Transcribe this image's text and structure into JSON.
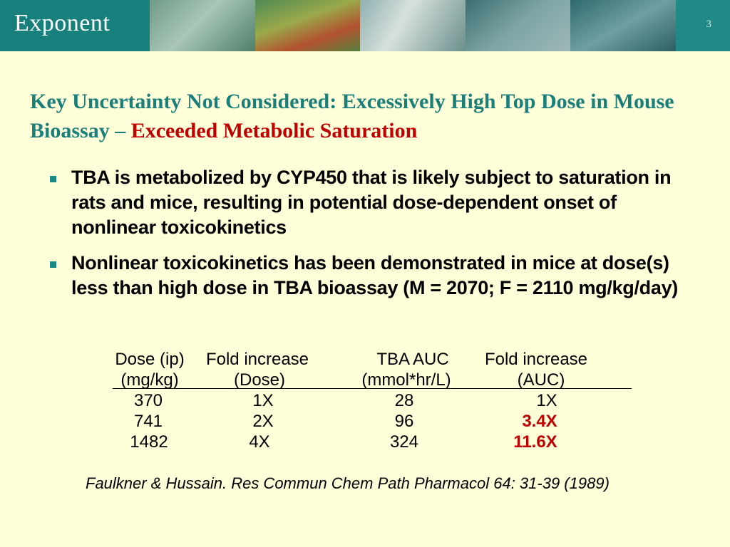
{
  "header": {
    "logo": "Exponent",
    "page_number": "3"
  },
  "title": {
    "part1": "Key Uncertainty  Not Considered: Excessively High Top Dose in Mouse Bioassay – ",
    "part2": "Exceeded Metabolic Saturation"
  },
  "bullets": [
    "TBA is metabolized by CYP450 that is likely subject to saturation in rats and mice, resulting in potential dose-dependent onset of nonlinear toxicokinetics",
    "Nonlinear toxicokinetics has been demonstrated in  mice at dose(s) less than high dose in TBA bioassay  (M = 2070; F = 2110 mg/kg/day)"
  ],
  "table": {
    "headers": [
      [
        "Dose (ip)",
        "(mg/kg)"
      ],
      [
        "Fold increase",
        "(Dose)"
      ],
      [
        "TBA AUC",
        "(mmol*hr/L)"
      ],
      [
        "Fold increase",
        "(AUC)"
      ]
    ],
    "rows": [
      [
        "370",
        "1X",
        "28",
        "1X"
      ],
      [
        "741",
        "2X",
        "96",
        "3.4X"
      ],
      [
        "1482",
        "4X",
        "324",
        "11.6X"
      ]
    ]
  },
  "citation": "Faulkner & Hussain. Res Commun Chem Path Pharmacol 64: 31-39 (1989)"
}
